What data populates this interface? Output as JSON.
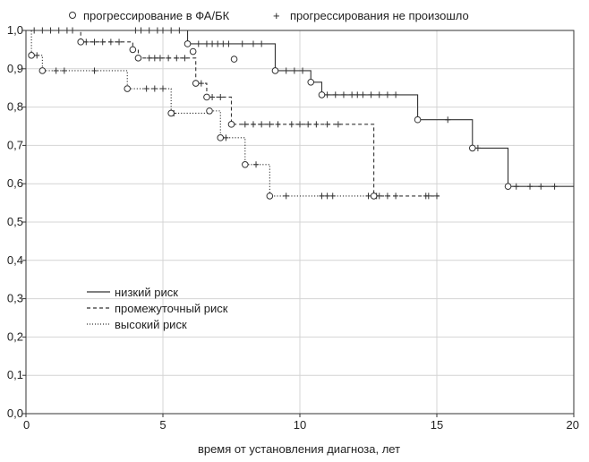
{
  "chart_data": {
    "type": "line",
    "title": "",
    "xlabel": "время от установления диагноза, лет",
    "ylabel": "",
    "xlim": [
      0,
      20
    ],
    "ylim": [
      0,
      1.0
    ],
    "grid": true,
    "x_ticks": [
      "0",
      "5",
      "10",
      "15",
      "20"
    ],
    "y_ticks": [
      "0,0",
      "0,1",
      "0,2",
      "0,3",
      "0,4",
      "0,5",
      "0,6",
      "0,7",
      "0,8",
      "0,9",
      "1,0"
    ],
    "marker_legend": {
      "event": "прогрессирование в ФА/БК",
      "censored": "прогрессирования не произошло"
    },
    "series": [
      {
        "name": "низкий риск",
        "line_style": "solid",
        "steps": [
          [
            0,
            1.0
          ],
          [
            5.9,
            0.965
          ],
          [
            9.1,
            0.895
          ],
          [
            10.4,
            0.865
          ],
          [
            10.8,
            0.832
          ],
          [
            14.3,
            0.767
          ],
          [
            16.3,
            0.693
          ],
          [
            17.6,
            0.593
          ],
          [
            20,
            0.593
          ]
        ],
        "events": [
          [
            5.9,
            0.965
          ],
          [
            6.1,
            0.945
          ],
          [
            7.6,
            0.925
          ],
          [
            9.1,
            0.895
          ],
          [
            10.4,
            0.865
          ],
          [
            10.8,
            0.832
          ],
          [
            14.3,
            0.767
          ],
          [
            16.3,
            0.693
          ],
          [
            17.6,
            0.593
          ]
        ],
        "censored": [
          4.0,
          4.2,
          4.5,
          4.8,
          5.0,
          5.3,
          5.6,
          6.3,
          6.6,
          6.8,
          7.0,
          7.2,
          7.4,
          7.9,
          8.3,
          8.6,
          9.5,
          9.8,
          10.1,
          11.0,
          11.3,
          11.6,
          11.9,
          12.1,
          12.3,
          12.6,
          12.9,
          13.2,
          13.5,
          15.4,
          16.5,
          17.9,
          18.4,
          18.8,
          19.3
        ]
      },
      {
        "name": "промежуточный риск",
        "line_style": "dashed",
        "steps": [
          [
            0,
            1.0
          ],
          [
            2.0,
            0.97
          ],
          [
            3.9,
            0.95
          ],
          [
            4.1,
            0.928
          ],
          [
            6.2,
            0.862
          ],
          [
            6.6,
            0.826
          ],
          [
            7.5,
            0.755
          ],
          [
            12.7,
            0.755
          ],
          [
            12.7,
            0.568
          ],
          [
            15.1,
            0.568
          ]
        ],
        "events": [
          [
            2.0,
            0.97
          ],
          [
            3.9,
            0.95
          ],
          [
            4.1,
            0.928
          ],
          [
            6.2,
            0.862
          ],
          [
            6.6,
            0.826
          ],
          [
            7.5,
            0.755
          ]
        ],
        "censored": [
          0.3,
          0.6,
          0.9,
          1.2,
          1.5,
          1.7,
          2.2,
          2.5,
          2.8,
          3.1,
          3.4,
          4.5,
          4.7,
          4.9,
          5.2,
          5.5,
          5.8,
          6.4,
          6.8,
          7.1,
          8.0,
          8.3,
          8.6,
          8.9,
          9.2,
          9.7,
          10.0,
          10.3,
          10.6,
          11.0,
          11.4,
          12.8,
          13.2,
          14.7,
          15.0
        ]
      },
      {
        "name": "высокий риск",
        "line_style": "dotted",
        "steps": [
          [
            0,
            1.0
          ],
          [
            0.2,
            0.935
          ],
          [
            0.6,
            0.895
          ],
          [
            3.7,
            0.848
          ],
          [
            5.3,
            0.784
          ],
          [
            6.7,
            0.79
          ],
          [
            7.1,
            0.72
          ],
          [
            8.0,
            0.65
          ],
          [
            8.9,
            0.568
          ],
          [
            12.9,
            0.568
          ]
        ],
        "events": [
          [
            0.2,
            0.935
          ],
          [
            0.6,
            0.895
          ],
          [
            3.7,
            0.848
          ],
          [
            5.3,
            0.784
          ],
          [
            6.7,
            0.79
          ],
          [
            7.1,
            0.72
          ],
          [
            8.0,
            0.65
          ],
          [
            8.9,
            0.568
          ],
          [
            12.7,
            0.568
          ]
        ],
        "censored": [
          0.4,
          1.1,
          1.4,
          2.5,
          4.4,
          4.7,
          5.0,
          5.4,
          7.3,
          8.4,
          9.5,
          10.8,
          11.0,
          11.2,
          12.5,
          12.9,
          13.5,
          14.6
        ]
      }
    ],
    "legend_placement": "center-left"
  }
}
